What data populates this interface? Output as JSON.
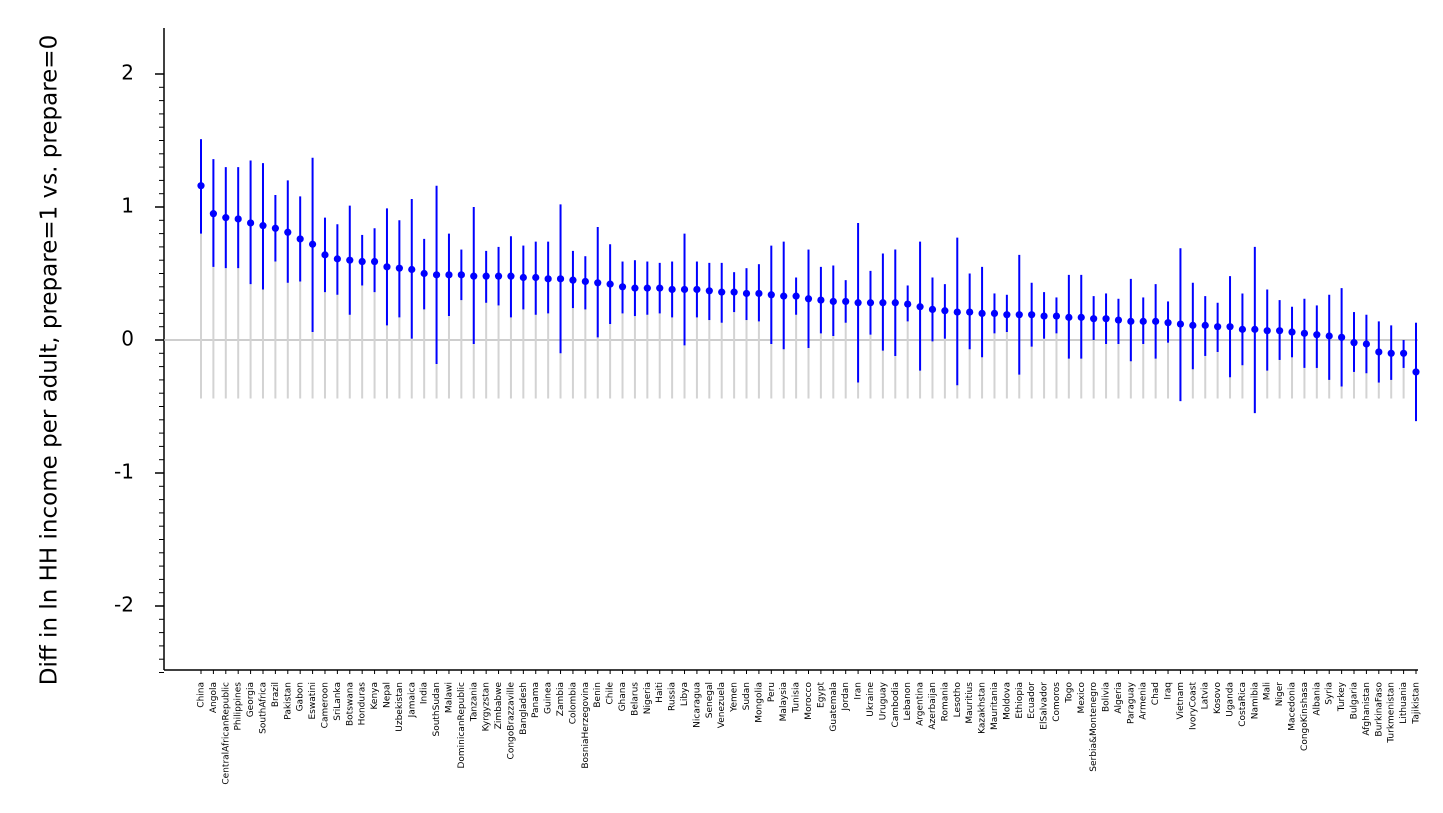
{
  "chart_data": {
    "type": "scatter",
    "ylabel": "Diff in ln HH income per adult, prepare=1 vs. prepare=0",
    "xlabel": "",
    "ylim": [
      -2.5,
      2.35
    ],
    "yticks": [
      -2,
      -1,
      0,
      1,
      2
    ],
    "reference_line": 0,
    "grid": false,
    "colors": {
      "point": "#0000ff",
      "ci": "#0000ff",
      "stem": "#d3d3d3",
      "zero": "#bdbdbd"
    },
    "categories": [
      "China",
      "Angola",
      "CentralAfricanRepublic",
      "Philippines",
      "Georgia",
      "SouthAfrica",
      "Brazil",
      "Pakistan",
      "Gabon",
      "Eswatini",
      "Cameroon",
      "SriLanka",
      "Botswana",
      "Honduras",
      "Kenya",
      "Nepal",
      "Uzbekistan",
      "Jamaica",
      "India",
      "SouthSudan",
      "Malawi",
      "DominicanRepublic",
      "Tanzania",
      "Kyrgyzstan",
      "Zimbabwe",
      "CongoBrazzaville",
      "Bangladesh",
      "Panama",
      "Guinea",
      "Zambia",
      "Colombia",
      "BosniaHerzegovina",
      "Benin",
      "Chile",
      "Ghana",
      "Belarus",
      "Nigeria",
      "Haiti",
      "Russia",
      "Libya",
      "Nicaragua",
      "Senegal",
      "Venezuela",
      "Yemen",
      "Sudan",
      "Mongolia",
      "Peru",
      "Malaysia",
      "Tunisia",
      "Morocco",
      "Egypt",
      "Guatemala",
      "Jordan",
      "Iran",
      "Ukraine",
      "Uruguay",
      "Cambodia",
      "Lebanon",
      "Argentina",
      "Azerbaijan",
      "Romania",
      "Lesotho",
      "Mauritius",
      "Kazakhstan",
      "Mauritania",
      "Moldova",
      "Ethiopia",
      "Ecuador",
      "ElSalvador",
      "Comoros",
      "Togo",
      "Mexico",
      "Serbia&Montenegro",
      "Bolivia",
      "Algeria",
      "Paraguay",
      "Armenia",
      "Chad",
      "Iraq",
      "Vietnam",
      "IvoryCoast",
      "Latvia",
      "Kosovo",
      "Uganda",
      "CostaRica",
      "Namibia",
      "Mali",
      "Niger",
      "Macedonia",
      "CongoKinshasa",
      "Albania",
      "Syria",
      "Turkey",
      "Bulgaria",
      "Afghanistan",
      "BurkinaFaso",
      "Turkmenistan",
      "Lithuania",
      "Tajikistan"
    ],
    "series": [
      {
        "estimate": [
          1.16,
          0.95,
          0.92,
          0.91,
          0.88,
          0.86,
          0.84,
          0.81,
          0.76,
          0.72,
          0.64,
          0.61,
          0.6,
          0.59,
          0.59,
          0.55,
          0.54,
          0.53,
          0.5,
          0.49,
          0.49,
          0.49,
          0.48,
          0.48,
          0.48,
          0.48,
          0.47,
          0.47,
          0.46,
          0.46,
          0.45,
          0.44,
          0.43,
          0.42,
          0.4,
          0.39,
          0.39,
          0.39,
          0.38,
          0.38,
          0.38,
          0.37,
          0.36,
          0.36,
          0.35,
          0.35,
          0.34,
          0.33,
          0.33,
          0.31,
          0.3,
          0.29,
          0.29,
          0.28,
          0.28,
          0.28,
          0.28,
          0.27,
          0.25,
          0.23,
          0.22,
          0.21,
          0.21,
          0.2,
          0.2,
          0.19,
          0.19,
          0.19,
          0.18,
          0.18,
          0.17,
          0.17,
          0.16,
          0.16,
          0.15,
          0.14,
          0.14,
          0.14,
          0.13,
          0.12,
          0.11,
          0.11,
          0.1,
          0.1,
          0.08,
          0.08,
          0.07,
          0.07,
          0.06,
          0.05,
          0.04,
          0.03,
          0.02,
          -0.02,
          -0.03,
          -0.09,
          -0.1,
          -0.1,
          -0.24
        ],
        "ci_low": [
          0.8,
          0.55,
          0.54,
          0.54,
          0.42,
          0.38,
          0.59,
          0.43,
          0.44,
          0.06,
          0.36,
          0.34,
          0.19,
          0.41,
          0.36,
          0.11,
          0.17,
          0.01,
          0.23,
          -0.18,
          0.18,
          0.3,
          -0.03,
          0.28,
          0.26,
          0.17,
          0.23,
          0.19,
          0.2,
          -0.1,
          0.24,
          0.23,
          0.02,
          0.12,
          0.2,
          0.18,
          0.19,
          0.2,
          0.17,
          -0.04,
          0.17,
          0.15,
          0.13,
          0.21,
          0.15,
          0.14,
          -0.03,
          -0.07,
          0.19,
          -0.06,
          0.05,
          0.03,
          0.13,
          -0.32,
          0.04,
          -0.08,
          -0.12,
          0.14,
          -0.23,
          -0.01,
          0.01,
          -0.34,
          -0.07,
          -0.13,
          0.05,
          0.06,
          -0.26,
          -0.05,
          0.01,
          0.05,
          -0.14,
          -0.14,
          0.0,
          -0.03,
          -0.03,
          -0.16,
          -0.03,
          -0.14,
          -0.02,
          -0.46,
          -0.22,
          -0.12,
          -0.09,
          -0.28,
          -0.19,
          -0.55,
          -0.23,
          -0.15,
          -0.13,
          -0.21,
          -0.21,
          -0.3,
          -0.35,
          -0.24,
          -0.25,
          -0.32,
          -0.3,
          -0.21,
          -0.61
        ],
        "ci_high": [
          1.51,
          1.36,
          1.3,
          1.3,
          1.35,
          1.33,
          1.09,
          1.2,
          1.08,
          1.37,
          0.92,
          0.87,
          1.01,
          0.79,
          0.84,
          0.99,
          0.9,
          1.06,
          0.76,
          1.16,
          0.8,
          0.68,
          1.0,
          0.67,
          0.7,
          0.78,
          0.71,
          0.74,
          0.74,
          1.02,
          0.67,
          0.63,
          0.85,
          0.72,
          0.59,
          0.6,
          0.59,
          0.58,
          0.59,
          0.8,
          0.59,
          0.58,
          0.58,
          0.51,
          0.54,
          0.57,
          0.71,
          0.74,
          0.47,
          0.68,
          0.55,
          0.56,
          0.45,
          0.88,
          0.52,
          0.65,
          0.68,
          0.41,
          0.74,
          0.47,
          0.42,
          0.77,
          0.5,
          0.55,
          0.35,
          0.34,
          0.64,
          0.43,
          0.36,
          0.32,
          0.49,
          0.49,
          0.33,
          0.35,
          0.31,
          0.46,
          0.32,
          0.42,
          0.29,
          0.69,
          0.43,
          0.33,
          0.28,
          0.48,
          0.35,
          0.7,
          0.38,
          0.3,
          0.25,
          0.31,
          0.26,
          0.34,
          0.39,
          0.21,
          0.19,
          0.14,
          0.11,
          0.0,
          0.13
        ],
        "stem_low": [
          -0.44,
          -0.44,
          -0.44,
          -0.44,
          -0.44,
          -0.44,
          -0.44,
          -0.44,
          -0.44,
          -0.44,
          -0.44,
          -0.44,
          -0.44,
          -0.44,
          -0.44,
          -0.44,
          -0.44,
          -0.44,
          -0.44,
          -0.44,
          -0.44,
          -0.44,
          -0.44,
          -0.44,
          -0.44,
          -0.44,
          -0.44,
          -0.44,
          -0.44,
          -0.44,
          -0.44,
          -0.44,
          -0.44,
          -0.44,
          -0.44,
          -0.44,
          -0.44,
          -0.44,
          -0.44,
          -0.44,
          -0.44,
          -0.44,
          -0.44,
          -0.44,
          -0.44,
          -0.44,
          -0.44,
          -0.44,
          -0.44,
          -0.44,
          -0.44,
          -0.44,
          -0.44,
          -0.44,
          -0.44,
          -0.44,
          -0.44,
          -0.44,
          -0.44,
          -0.44,
          -0.44,
          -0.44,
          -0.44,
          -0.44,
          -0.44,
          -0.44,
          -0.44,
          -0.44,
          -0.44,
          -0.44,
          -0.44,
          -0.44,
          -0.44,
          -0.44,
          -0.44,
          -0.44,
          -0.44,
          -0.44,
          -0.44,
          -0.46,
          -0.44,
          -0.44,
          -0.44,
          -0.44,
          -0.44,
          -0.55,
          -0.44,
          -0.44,
          -0.44,
          -0.44,
          -0.44,
          -0.44,
          -0.44,
          -0.44,
          -0.44,
          -0.44,
          -0.44,
          -0.44,
          -0.61
        ]
      }
    ]
  }
}
